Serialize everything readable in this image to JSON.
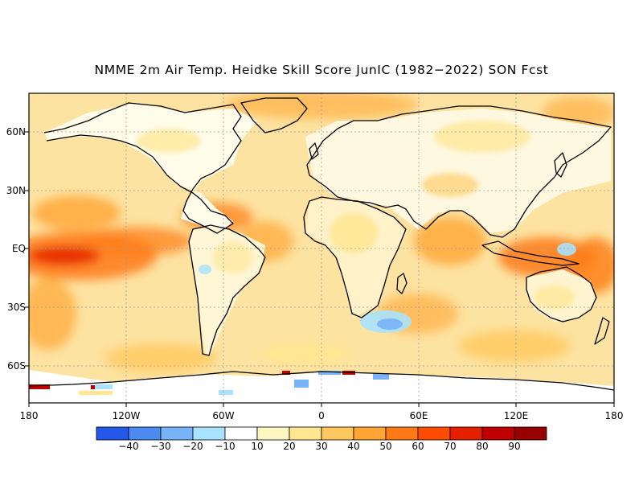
{
  "title": "NMME 2m Air Temp. Heidke Skill Score JunIC (1982−2022) SON Fcst",
  "axes": {
    "lat_ticks": [
      "60N",
      "30N",
      "EQ",
      "30S",
      "60S"
    ],
    "lon_ticks": [
      "180",
      "120W",
      "60W",
      "0",
      "60E",
      "120E",
      "180"
    ]
  },
  "colorbar": {
    "labels": [
      "−40",
      "−30",
      "−20",
      "−10",
      "10",
      "20",
      "30",
      "40",
      "50",
      "60",
      "70",
      "80",
      "90"
    ],
    "colors": [
      "#2458e8",
      "#4c8af2",
      "#78b3f8",
      "#a8e2fc",
      "#ffffff",
      "#fff7c2",
      "#ffe690",
      "#ffc85e",
      "#ffa534",
      "#ff7a14",
      "#ff4c00",
      "#e42000",
      "#c00000",
      "#960000"
    ]
  },
  "palette": {
    "ocean_base": "#fde3a2",
    "land_base": "#ffffff",
    "coast": "#000000",
    "grid": "#9a9a9a"
  }
}
